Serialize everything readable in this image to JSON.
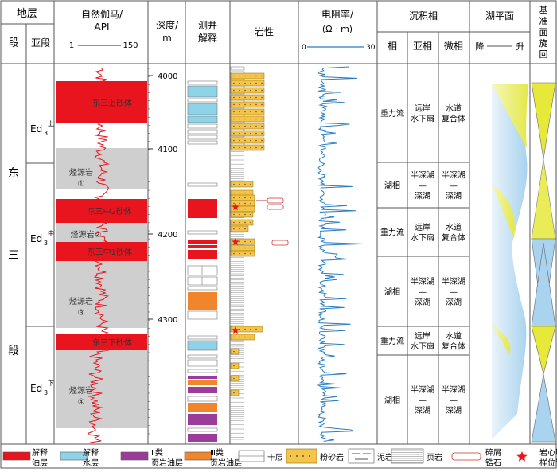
{
  "header": {
    "strata": "地层",
    "section": "段",
    "subsection": "亚段",
    "gamma_title": "自然伽马/",
    "gamma_unit": "API",
    "gamma_min": "1",
    "gamma_max": "150",
    "depth_title": "深度/",
    "depth_unit": "m",
    "log_interp_1": "测井",
    "log_interp_2": "解释",
    "lithology": "岩性",
    "resist_title": "电阻率/",
    "resist_unit": "(Ω · m)",
    "resist_min": "0",
    "resist_max": "30",
    "facies": "沉积相",
    "facies_sub_1": "相",
    "facies_sub_2": "亚相",
    "facies_sub_3": "微相",
    "lake_level": "湖平面",
    "lake_fall": "降",
    "lake_rise": "升",
    "base_level": [
      "基",
      "准",
      "面",
      "旋",
      "回"
    ]
  },
  "section_label": [
    "东",
    "三",
    "段"
  ],
  "subsections": [
    {
      "main": "Ed",
      "sub": "3",
      "sup": "上"
    },
    {
      "main": "Ed",
      "sub": "3",
      "sup": "中"
    },
    {
      "main": "Ed",
      "sub": "3",
      "sup": "下"
    }
  ],
  "depth_ticks": [
    "4000",
    "4100",
    "4200",
    "4300"
  ],
  "sand_labels": [
    "东三上砂体",
    "东三中2砂体",
    "东三中1砂体",
    "东三下砂体"
  ],
  "source_rocks": [
    {
      "line1": "烃源岩",
      "line2": "①"
    },
    {
      "line1": "烃源岩②",
      "line2": ""
    },
    {
      "line1": "烃源岩",
      "line2": "③"
    },
    {
      "line1": "烃源岩",
      "line2": "④"
    }
  ],
  "facies_rows": [
    {
      "facies": "重力流",
      "subfacies": [
        "远岸",
        "水下扇"
      ],
      "micro": [
        "水道",
        "复合体"
      ]
    },
    {
      "facies": "湖相",
      "subfacies": [
        "半深湖",
        "—",
        "深湖"
      ],
      "micro": [
        "半深湖",
        "—",
        "深湖"
      ]
    },
    {
      "facies": "重力流",
      "subfacies": [
        "远岸",
        "水下扇"
      ],
      "micro": [
        "水道",
        "复合体"
      ]
    },
    {
      "facies": "湖相",
      "subfacies": [
        "半深湖",
        "—",
        "深湖"
      ],
      "micro": [
        "半深湖",
        "—",
        "深湖"
      ]
    },
    {
      "facies": "重力流",
      "subfacies": [
        "远岸",
        "水下扇"
      ],
      "micro": [
        "水道",
        "复合体"
      ]
    },
    {
      "facies": "湖相",
      "subfacies": [
        "半深湖",
        "—",
        "深湖"
      ],
      "micro": [
        "半深湖",
        "—",
        "深湖"
      ]
    }
  ],
  "legend": [
    {
      "line1": "解释",
      "line2": "油层",
      "color": "#e8141e"
    },
    {
      "line1": "解释",
      "line2": "水层",
      "color": "#8fd3e8"
    },
    {
      "line1": "Ⅱ类",
      "line2": "页岩油层",
      "color": "#9b3c9b"
    },
    {
      "line1": "Ⅲ类",
      "line2": "页岩油层",
      "color": "#f0852b"
    },
    {
      "line1": "干层",
      "line2": ""
    },
    {
      "line1": "粉砂岩",
      "line2": ""
    },
    {
      "line1": "泥岩",
      "line2": ""
    },
    {
      "line1": "页岩",
      "line2": ""
    },
    {
      "line1": "碎屑",
      "line2": "锆石"
    },
    {
      "line1": "岩心取",
      "line2": "样位置"
    }
  ]
}
